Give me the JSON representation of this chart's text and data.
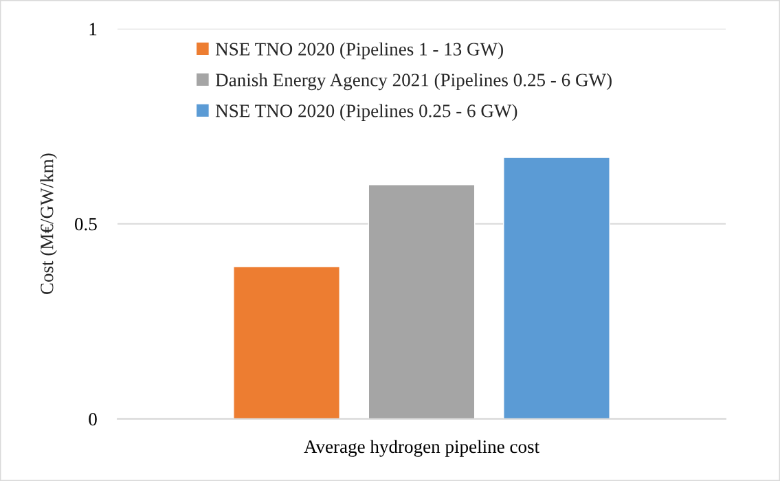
{
  "chart_data": {
    "type": "bar",
    "ylabel": "Cost (M€/GW/km)",
    "categories": [
      "Average hydrogen pipeline cost"
    ],
    "series": [
      {
        "name": "NSE TNO 2020 (Pipelines 1 - 13 GW)",
        "color": "#ed7d31",
        "values": [
          0.39
        ]
      },
      {
        "name": "Danish Energy Agency 2021 (Pipelines 0.25 - 6 GW)",
        "color": "#a5a5a5",
        "values": [
          0.6
        ]
      },
      {
        "name": "NSE TNO 2020 (Pipelines 0.25 - 6 GW)",
        "color": "#5b9bd5",
        "values": [
          0.67
        ]
      }
    ],
    "ylim": [
      0,
      1
    ],
    "yticks": [
      0,
      0.5,
      1
    ],
    "grid": "y",
    "legend": "top left"
  }
}
